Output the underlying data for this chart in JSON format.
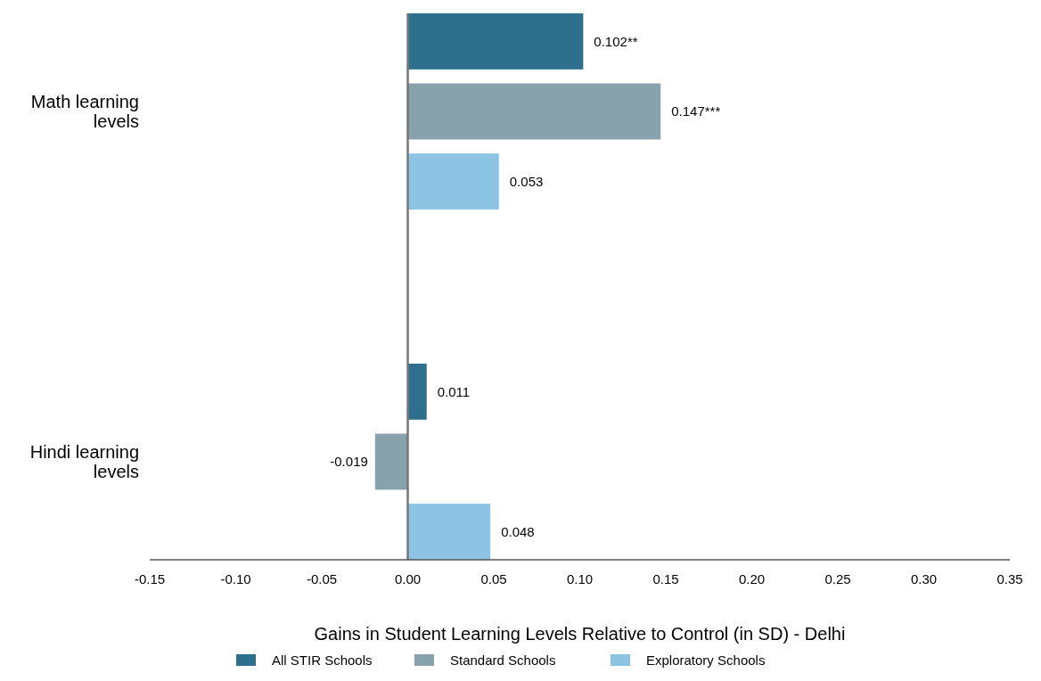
{
  "chart_data": {
    "type": "bar",
    "orientation": "horizontal",
    "xlabel": "Gains in Student Learning Levels Relative to Control (in SD) - Delhi",
    "categories": [
      "Math learning levels",
      "Hindi learning levels"
    ],
    "series": [
      {
        "name": "All STIR Schools",
        "color": "#2e6f8e",
        "values": [
          0.102,
          0.011
        ],
        "value_labels": [
          "0.102**",
          "0.011"
        ]
      },
      {
        "name": "Standard Schools",
        "color": "#87a1ad",
        "values": [
          0.147,
          -0.019
        ],
        "value_labels": [
          "0.147***",
          "-0.019"
        ]
      },
      {
        "name": "Exploratory Schools",
        "color": "#8dc3e3",
        "values": [
          0.053,
          0.048
        ],
        "value_labels": [
          "0.053",
          "0.048"
        ]
      }
    ],
    "xlim": [
      -0.15,
      0.35
    ],
    "xticks": [
      {
        "value": -0.15,
        "label": "-0.15"
      },
      {
        "value": -0.1,
        "label": "-0.10"
      },
      {
        "value": -0.05,
        "label": "-0.05"
      },
      {
        "value": 0,
        "label": "0.00"
      },
      {
        "value": 0.05,
        "label": "0.05"
      },
      {
        "value": 0.1,
        "label": "0.10"
      },
      {
        "value": 0.15,
        "label": "0.15"
      },
      {
        "value": 0.2,
        "label": "0.20"
      },
      {
        "value": 0.25,
        "label": "0.25"
      },
      {
        "value": 0.3,
        "label": "0.30"
      },
      {
        "value": 0.35,
        "label": "0.35"
      }
    ],
    "ref_lines": [
      {
        "axis": "x",
        "value": 0,
        "color": "#777777"
      }
    ],
    "legend": "bottom"
  }
}
